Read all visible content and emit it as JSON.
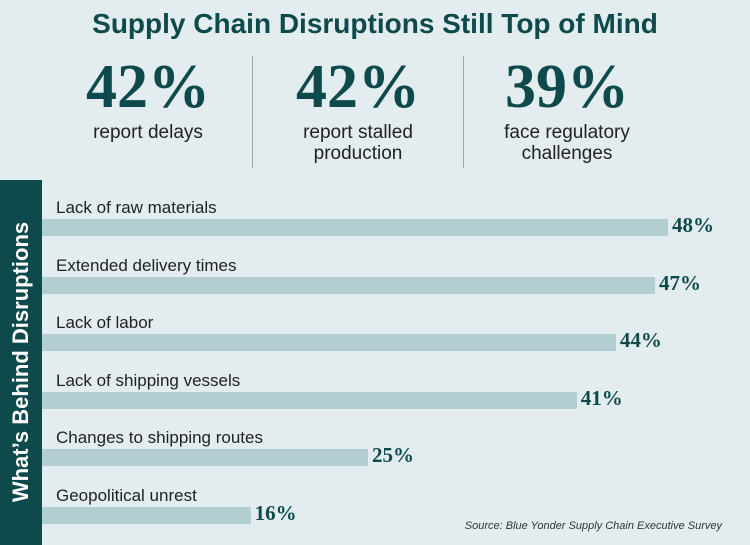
{
  "title": "Supply Chain Disruptions Still Top of Mind",
  "stats": [
    {
      "value": "42%",
      "label": "report delays"
    },
    {
      "value": "42%",
      "label": "report stalled production"
    },
    {
      "value": "39%",
      "label": "face regulatory challenges"
    }
  ],
  "chart_data": {
    "type": "bar",
    "orientation": "horizontal",
    "axis_label": "What’s Behind Disruptions",
    "categories": [
      "Lack of raw materials",
      "Extended delivery times",
      "Lack of labor",
      "Lack of shipping vessels",
      "Changes to shipping routes",
      "Geopolitical unrest"
    ],
    "values": [
      48,
      47,
      44,
      41,
      25,
      16
    ],
    "value_labels": [
      "48%",
      "47%",
      "44%",
      "41%",
      "25%",
      "16%"
    ],
    "color": "#b2ced1"
  },
  "source": "Source: Blue Yonder Supply Chain Executive Survey"
}
